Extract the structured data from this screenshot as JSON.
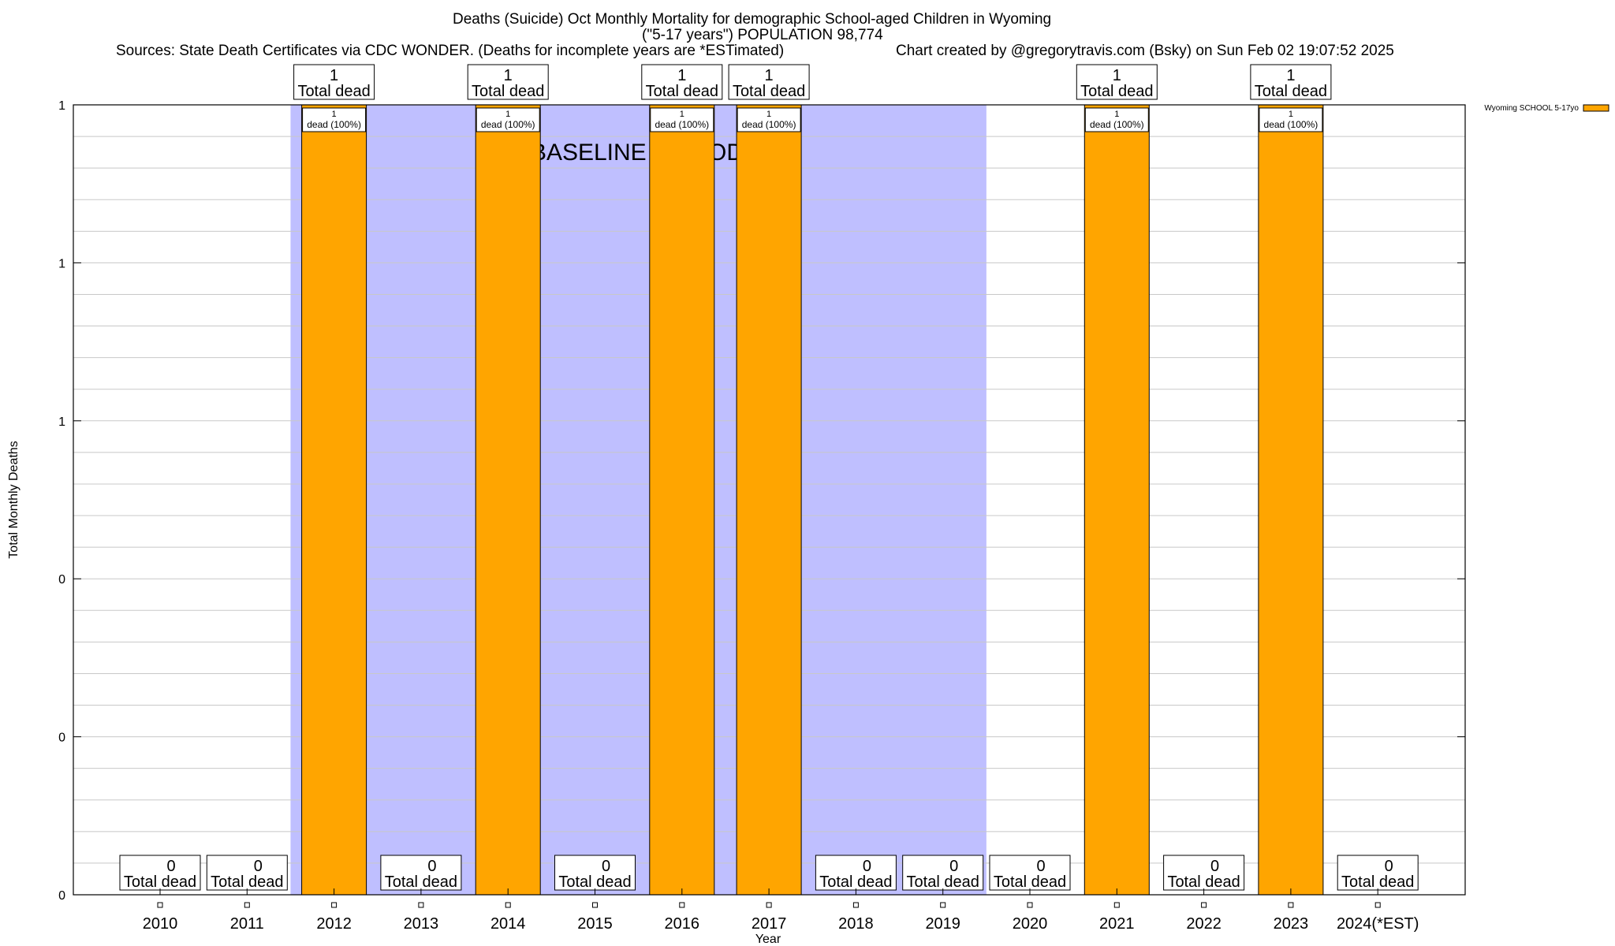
{
  "chart_data": {
    "type": "bar",
    "title_lines": [
      "Deaths (Suicide) Oct Monthly Mortality for demographic School-aged Children in Wyoming",
      "(\"5-17 years\") POPULATION 98,774"
    ],
    "sources": "Sources: State Death Certificates via CDC WONDER. (Deaths for incomplete years are *ESTimated)",
    "credit": "Chart created by @gregorytravis.com (Bsky) on Sun Feb 02 19:07:52 2025",
    "xlabel": "Year",
    "ylabel": "Total Monthly Deaths",
    "ylim": [
      0,
      1
    ],
    "y_tick_labels": [
      "0",
      "0",
      "0",
      "1",
      "1",
      "1"
    ],
    "categories": [
      "2010",
      "2011",
      "2012",
      "2013",
      "2014",
      "2015",
      "2016",
      "2017",
      "2018",
      "2019",
      "2020",
      "2021",
      "2022",
      "2023",
      "2024(*EST)"
    ],
    "series": [
      {
        "name": "Wyoming SCHOOL 5-17yo",
        "color": "#ffa500",
        "values": [
          0,
          0,
          1,
          0,
          1,
          0,
          1,
          1,
          0,
          0,
          0,
          1,
          0,
          1,
          0
        ]
      }
    ],
    "total_label_text": "Total dead",
    "bar_label_text": "dead (100%)",
    "baseline": {
      "label": "BASELINE PERIOD",
      "start": "2012",
      "end": "2019",
      "color": "#bfbfff"
    },
    "legend_position": "top-right",
    "grid": true
  }
}
